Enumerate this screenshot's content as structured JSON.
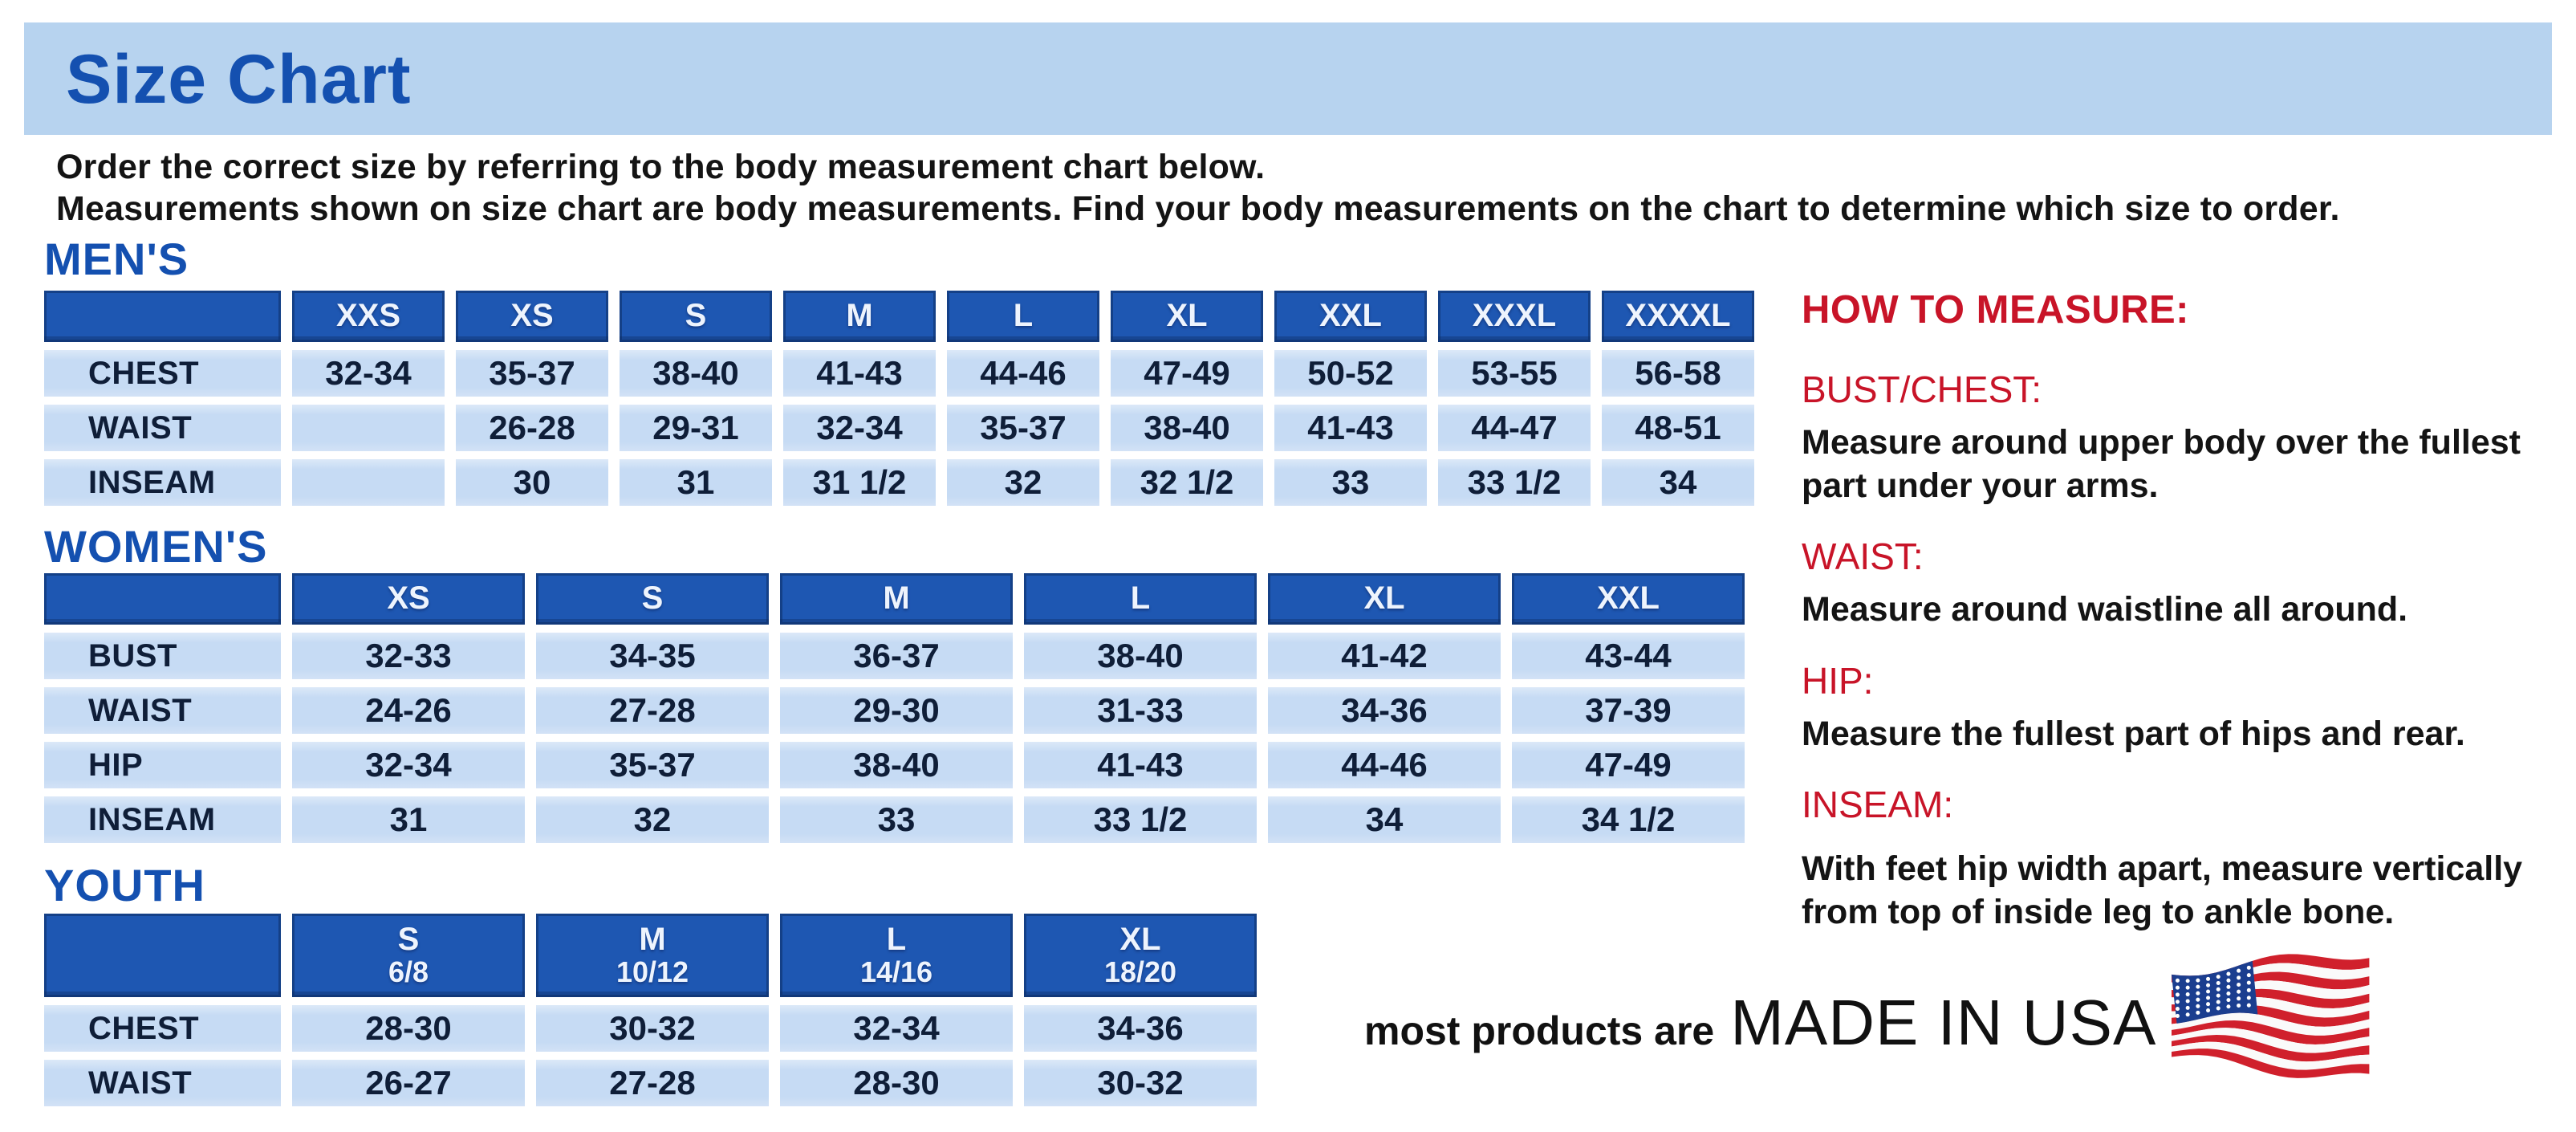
{
  "page": {
    "title": "Size Chart",
    "intro_line1": "Order the correct size by referring to the body measurement chart below.",
    "intro_line2": "Measurements shown on size chart are body measurements.  Find your body measurements on the chart to determine which size to order."
  },
  "colors": {
    "banner_bg": "#b7d3ef",
    "heading_blue": "#1450b0",
    "header_cell_blue": "#1e57b2",
    "body_cell_blue": "#c6dbf4",
    "accent_red": "#c81428",
    "flag_red": "#d0202c",
    "flag_blue": "#1b3e8f"
  },
  "tables": {
    "mens": {
      "heading": "MEN'S",
      "columns": [
        "XXS",
        "XS",
        "S",
        "M",
        "L",
        "XL",
        "XXL",
        "XXXL",
        "XXXXL"
      ],
      "rows": [
        {
          "label": "CHEST",
          "values": [
            "32-34",
            "35-37",
            "38-40",
            "41-43",
            "44-46",
            "47-49",
            "50-52",
            "53-55",
            "56-58"
          ]
        },
        {
          "label": "WAIST",
          "values": [
            "",
            "26-28",
            "29-31",
            "32-34",
            "35-37",
            "38-40",
            "41-43",
            "44-47",
            "48-51"
          ]
        },
        {
          "label": "INSEAM",
          "values": [
            "",
            "30",
            "31",
            "31 1/2",
            "32",
            "32 1/2",
            "33",
            "33 1/2",
            "34"
          ]
        }
      ]
    },
    "womens": {
      "heading": "WOMEN'S",
      "columns": [
        "XS",
        "S",
        "M",
        "L",
        "XL",
        "XXL"
      ],
      "rows": [
        {
          "label": "BUST",
          "values": [
            "32-33",
            "34-35",
            "36-37",
            "38-40",
            "41-42",
            "43-44"
          ]
        },
        {
          "label": "WAIST",
          "values": [
            "24-26",
            "27-28",
            "29-30",
            "31-33",
            "34-36",
            "37-39"
          ]
        },
        {
          "label": "HIP",
          "values": [
            "32-34",
            "35-37",
            "38-40",
            "41-43",
            "44-46",
            "47-49"
          ]
        },
        {
          "label": "INSEAM",
          "values": [
            "31",
            "32",
            "33",
            "33 1/2",
            "34",
            "34 1/2"
          ]
        }
      ]
    },
    "youth": {
      "heading": "YOUTH",
      "columns": [
        {
          "size": "S",
          "grades": "6/8"
        },
        {
          "size": "M",
          "grades": "10/12"
        },
        {
          "size": "L",
          "grades": "14/16"
        },
        {
          "size": "XL",
          "grades": "18/20"
        }
      ],
      "rows": [
        {
          "label": "CHEST",
          "values": [
            "28-30",
            "30-32",
            "32-34",
            "34-36"
          ]
        },
        {
          "label": "WAIST",
          "values": [
            "26-27",
            "27-28",
            "28-30",
            "30-32"
          ]
        }
      ]
    }
  },
  "how_to_measure": {
    "heading": "HOW TO MEASURE:",
    "items": [
      {
        "label": "BUST/CHEST:",
        "text": "Measure around upper body over the fullest part under your arms."
      },
      {
        "label": "WAIST:",
        "text": "Measure around waistline all around."
      },
      {
        "label": "HIP:",
        "text": "Measure the fullest part of hips and rear."
      },
      {
        "label": "INSEAM:",
        "text": "With feet hip width apart, measure vertically from top of inside leg to ankle bone."
      }
    ]
  },
  "footer": {
    "prefix": "most products are",
    "made_in": "MADE IN USA",
    "flag_icon": "us-flag-icon"
  }
}
